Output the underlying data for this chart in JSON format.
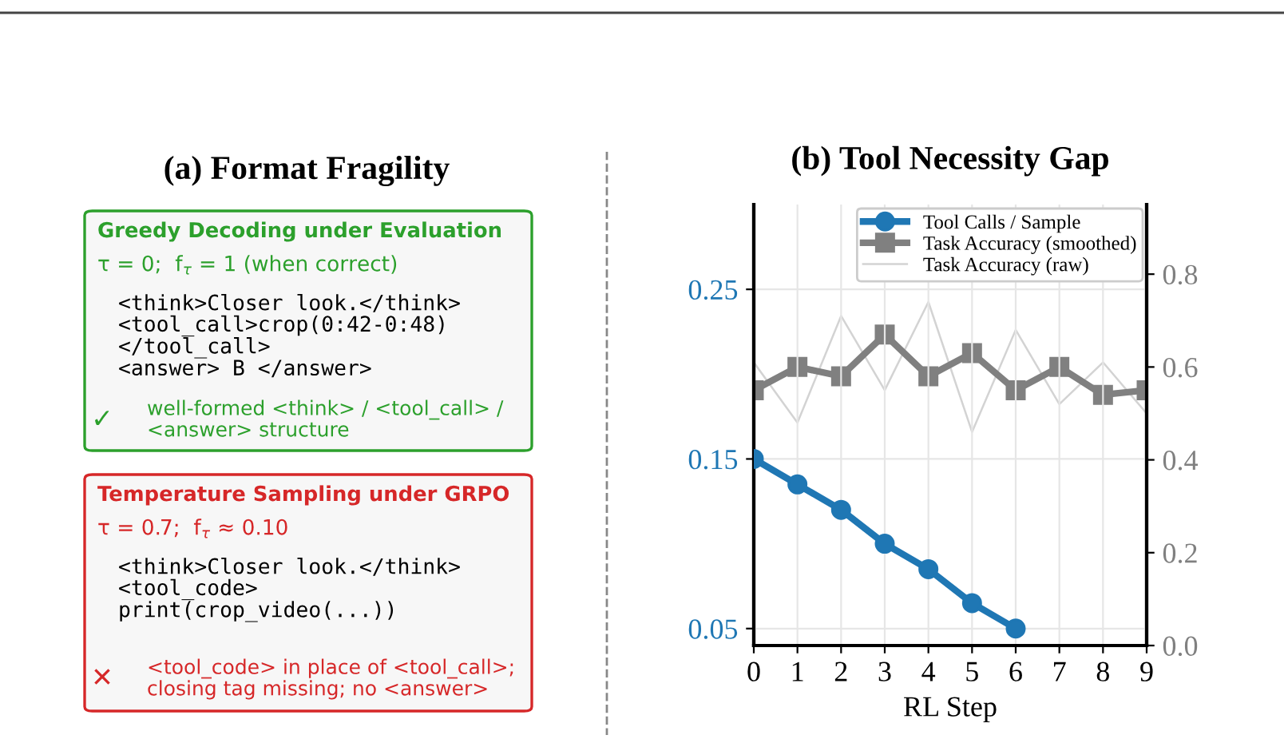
{
  "chart_data": [
    {
      "type": "other",
      "title": "(a) Format Fragility",
      "annotations": [
        "Greedy Decoding under Evaluation",
        "τ = 0;  f$_{τ}$ = 1 (when correct)",
        "<think>Closer look.</think>\n<tool_call>crop(0:42-0:48)\n</tool_call>\n<answer> B </answer>",
        "✓",
        "well-formed <think> / <tool_call> /\n<answer> structure",
        "Temperature Sampling under GRPO",
        "τ = 0.7;  f$_{τ}$ ≈ 0.10",
        "<think>Closer look.</think>\n<tool_code>\nprint(crop_video(...))",
        "✕",
        "<tool_code> in place of <tool_call>;\nclosing tag missing; no <answer>"
      ]
    },
    {
      "type": "line",
      "title": "(b) Tool Necessity Gap",
      "xlabel": "RL Step",
      "x": [
        0,
        1,
        2,
        3,
        4,
        5,
        6,
        7,
        8,
        9
      ],
      "xlim": [
        0,
        9
      ],
      "xticks": [
        0,
        1,
        2,
        3,
        4,
        5,
        6,
        7,
        8,
        9
      ],
      "ylim": [
        0.04,
        0.3
      ],
      "yticks": [
        0.05,
        0.15,
        0.25
      ],
      "y2lim": [
        0,
        0.95
      ],
      "y2ticks": [
        {
          "value": 0,
          "label": "0.0"
        },
        {
          "value": 0.2,
          "label": "0.2"
        },
        {
          "value": 0.4,
          "label": "0.4"
        },
        {
          "value": 0.6,
          "label": "0.6"
        },
        {
          "value": 0.8,
          "label": "0.8"
        }
      ],
      "grid": true,
      "legend": "top right",
      "series": [
        {
          "name": "Tool Calls / Sample",
          "color": "#1f77b4",
          "marker": "circle",
          "values": [
            0.15,
            0.135,
            0.12,
            0.1,
            0.085,
            0.065,
            0.05,
            null,
            null,
            null
          ]
        },
        {
          "name": "Task Accuracy (smoothed)",
          "color": "#808080",
          "marker": "square",
          "axis": "y2",
          "values": [
            0.55,
            0.6,
            0.58,
            0.67,
            0.58,
            0.63,
            0.55,
            0.6,
            0.54,
            0.55
          ]
        },
        {
          "name": "Task Accuracy (raw)",
          "color": "#d3d3d3",
          "marker": "none",
          "axis": "y2",
          "values": [
            0.61,
            0.48,
            0.71,
            0.55,
            0.74,
            0.46,
            0.68,
            0.52,
            0.61,
            0.5
          ]
        }
      ]
    }
  ]
}
